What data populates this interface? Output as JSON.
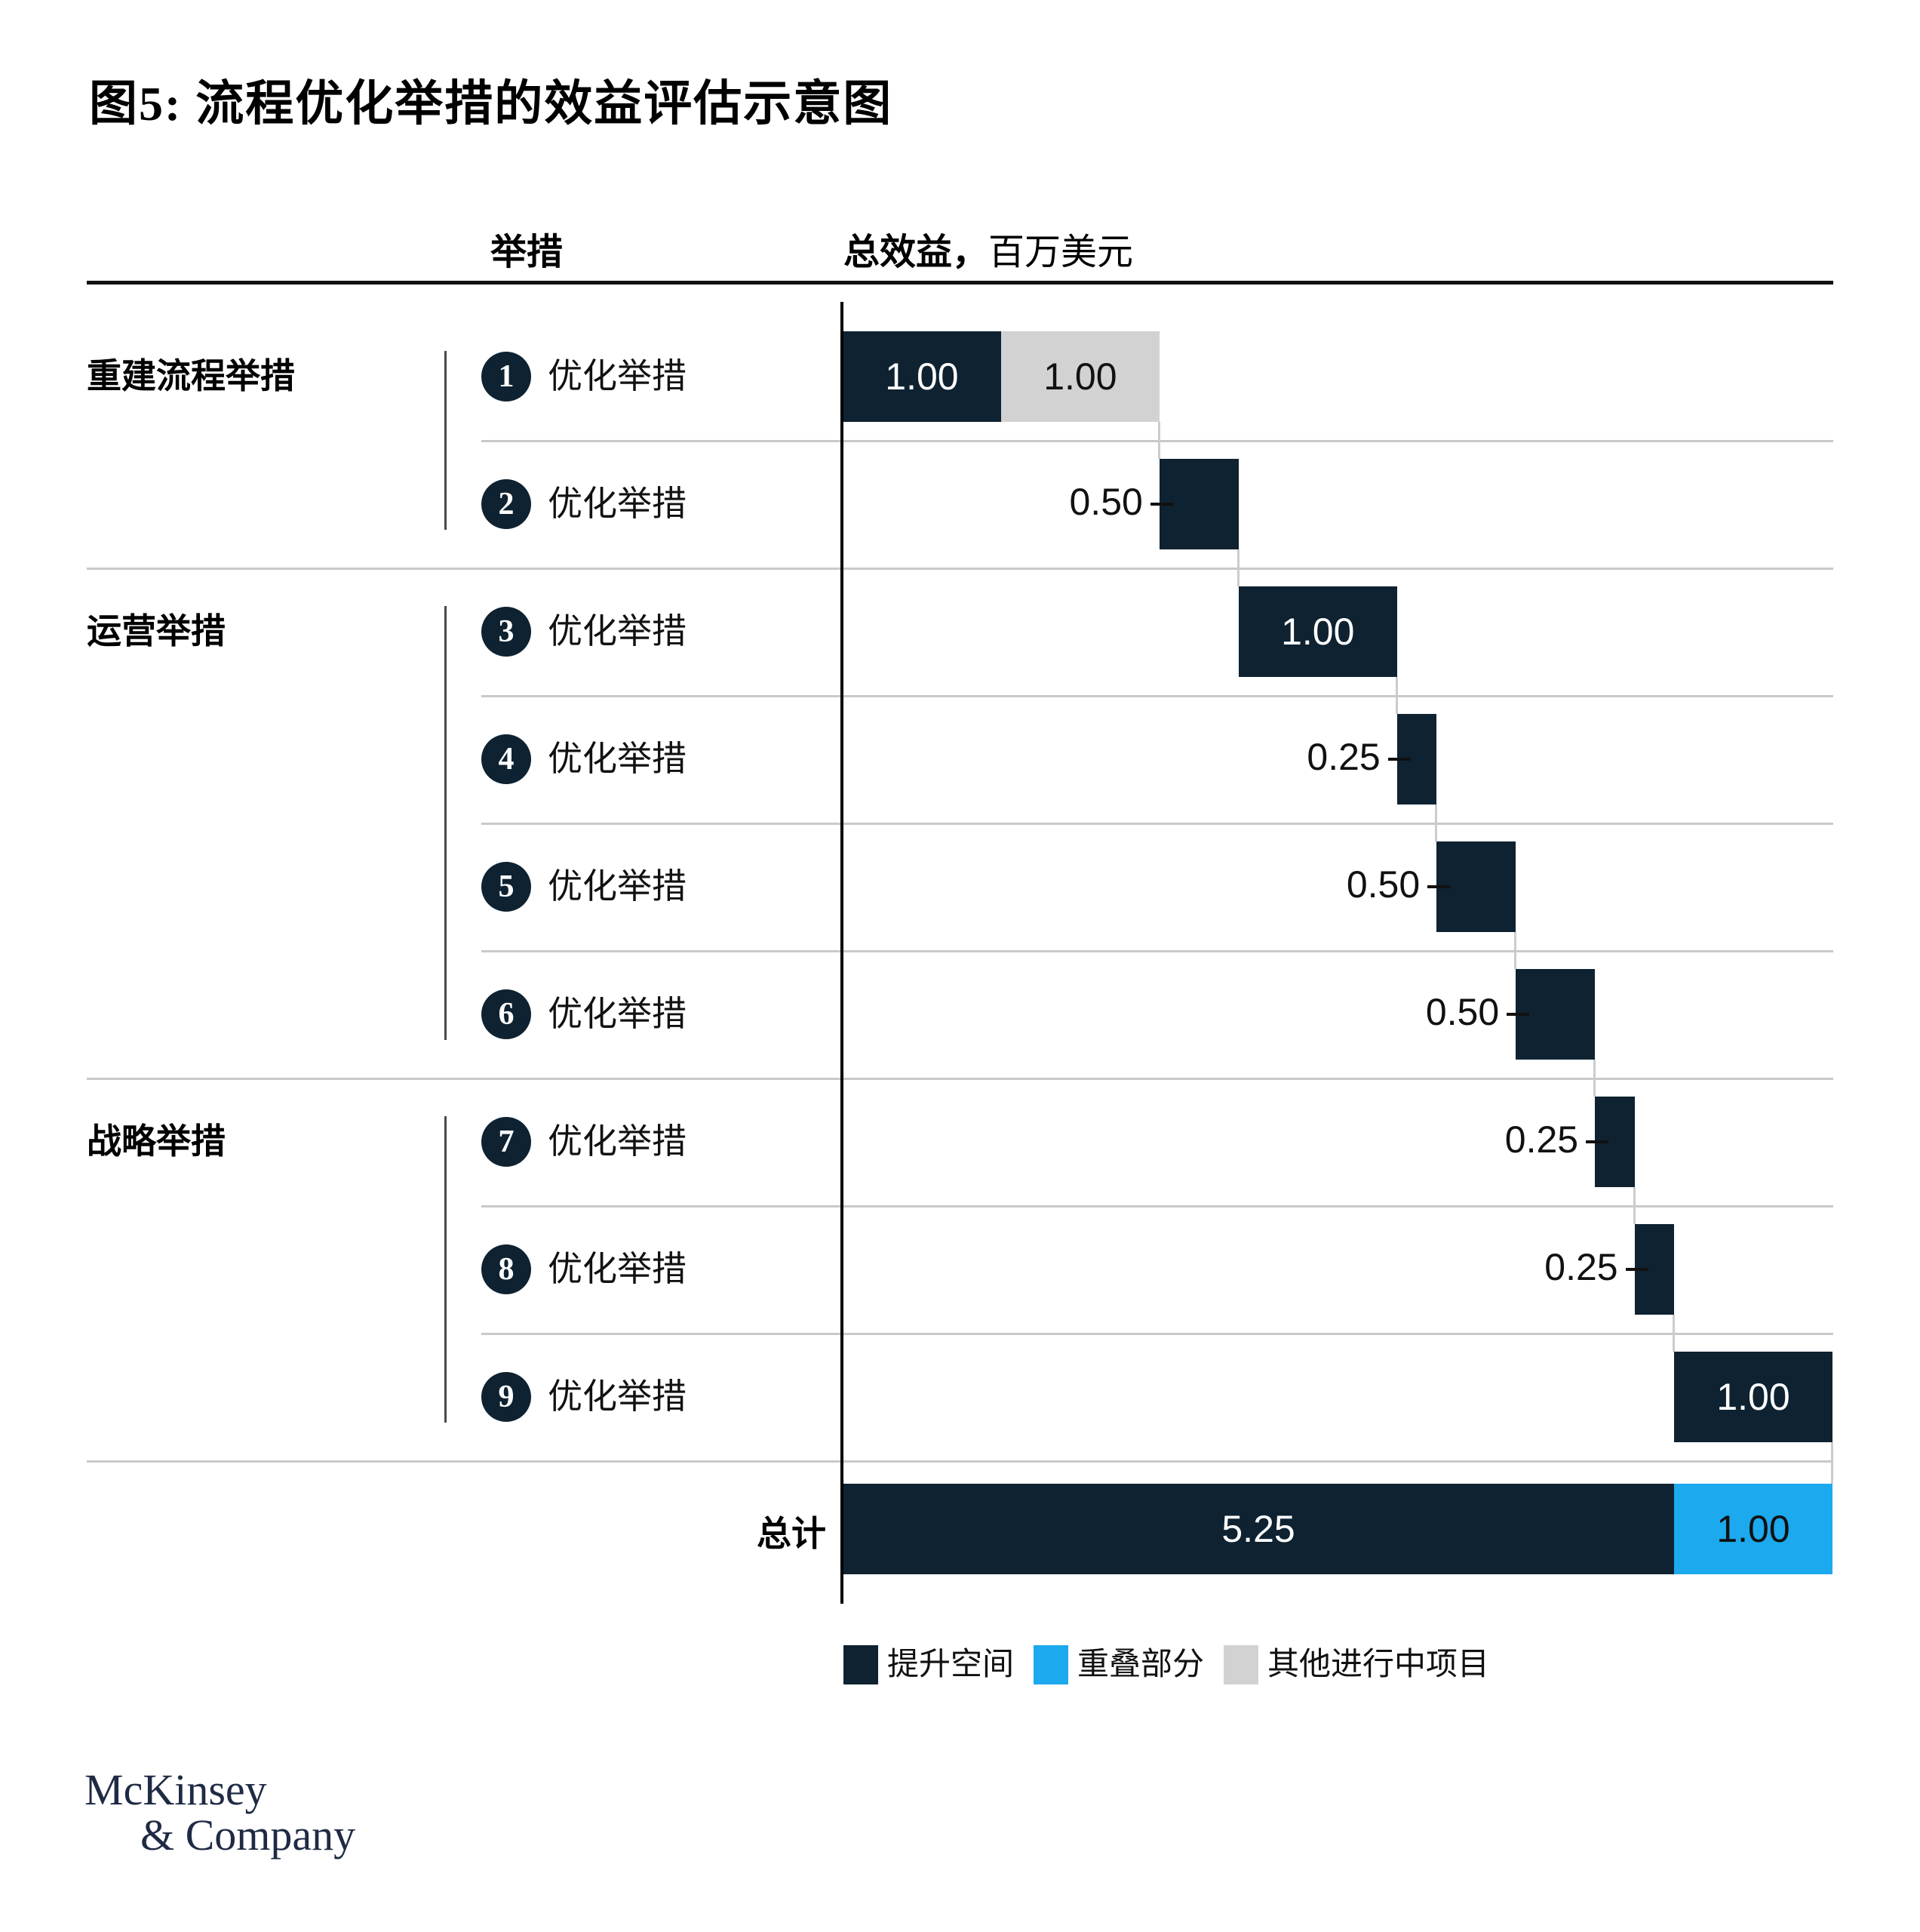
{
  "title": "图5: 流程优化举措的效益评估示意图",
  "columns": {
    "initiative": "举措",
    "benefit_label": "总效益，",
    "benefit_unit": "百万美元"
  },
  "chart_data": {
    "type": "waterfall",
    "title": "流程优化举措的效益评估示意图",
    "xlabel": "总效益，百万美元",
    "axis": {
      "min": 0,
      "max": 6.25
    },
    "colors": {
      "improvement": "#0e2231",
      "overlap": "#1ca9ee",
      "other_ongoing": "#d2d2d2"
    },
    "groups": [
      {
        "name": "重建流程举措",
        "items": [
          {
            "num": "1",
            "label": "优化举措",
            "value": 1.0,
            "other_ongoing": 1.0
          },
          {
            "num": "2",
            "label": "优化举措",
            "value": 0.5
          }
        ]
      },
      {
        "name": "运营举措",
        "items": [
          {
            "num": "3",
            "label": "优化举措",
            "value": 1.0
          },
          {
            "num": "4",
            "label": "优化举措",
            "value": 0.25
          },
          {
            "num": "5",
            "label": "优化举措",
            "value": 0.5
          },
          {
            "num": "6",
            "label": "优化举措",
            "value": 0.5
          }
        ]
      },
      {
        "name": "战略举措",
        "items": [
          {
            "num": "7",
            "label": "优化举措",
            "value": 0.25
          },
          {
            "num": "8",
            "label": "优化举措",
            "value": 0.25
          },
          {
            "num": "9",
            "label": "优化举措",
            "value": 1.0
          }
        ]
      }
    ],
    "total": {
      "label": "总计",
      "improvement": 5.25,
      "overlap": 1.0
    },
    "legend": [
      {
        "label": "提升空间",
        "color_key": "improvement"
      },
      {
        "label": "重叠部分",
        "color_key": "overlap"
      },
      {
        "label": "其他进行中项目",
        "color_key": "other_ongoing"
      }
    ]
  },
  "logo": {
    "line1": "McKinsey",
    "line2": "& Company"
  }
}
